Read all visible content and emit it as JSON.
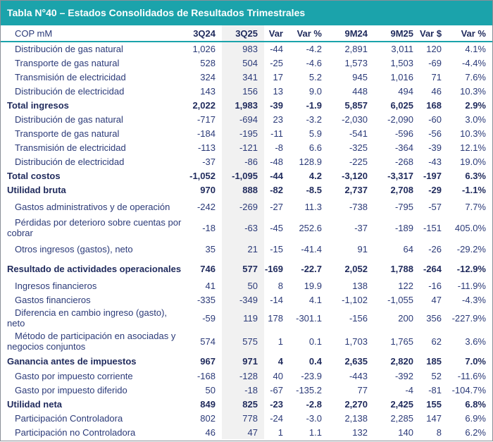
{
  "title": "Tabla N°40 – Estados Consolidados de Resultados Trimestrales",
  "columns": [
    "COP mM",
    "3Q24",
    "3Q25",
    "Var",
    "Var %",
    "9M24",
    "9M25",
    "Var $",
    "Var %"
  ],
  "rows": [
    {
      "label": "Distribución de gas natural",
      "type": "item",
      "values": [
        "1,026",
        "983",
        "-44",
        "-4.2",
        "2,891",
        "3,011",
        "120",
        "4.1%"
      ]
    },
    {
      "label": "Transporte de gas natural",
      "type": "item",
      "values": [
        "528",
        "504",
        "-25",
        "-4.6",
        "1,573",
        "1,503",
        "-69",
        "-4.4%"
      ]
    },
    {
      "label": "Transmisión de electricidad",
      "type": "item",
      "values": [
        "324",
        "341",
        "17",
        "5.2",
        "945",
        "1,016",
        "71",
        "7.6%"
      ]
    },
    {
      "label": "Distribución de electricidad",
      "type": "item",
      "values": [
        "143",
        "156",
        "13",
        "9.0",
        "448",
        "494",
        "46",
        "10.3%"
      ]
    },
    {
      "label": "Total ingresos",
      "type": "bold",
      "values": [
        "2,022",
        "1,983",
        "-39",
        "-1.9",
        "5,857",
        "6,025",
        "168",
        "2.9%"
      ]
    },
    {
      "label": "Distribución de gas natural",
      "type": "item",
      "values": [
        "-717",
        "-694",
        "23",
        "-3.2",
        "-2,030",
        "-2,090",
        "-60",
        "3.0%"
      ]
    },
    {
      "label": "Transporte de gas natural",
      "type": "item",
      "values": [
        "-184",
        "-195",
        "-11",
        "5.9",
        "-541",
        "-596",
        "-56",
        "10.3%"
      ]
    },
    {
      "label": "Transmisión de electricidad",
      "type": "item",
      "values": [
        "-113",
        "-121",
        "-8",
        "6.6",
        "-325",
        "-364",
        "-39",
        "12.1%"
      ]
    },
    {
      "label": "Distribución de electricidad",
      "type": "item",
      "values": [
        "-37",
        "-86",
        "-48",
        "128.9",
        "-225",
        "-268",
        "-43",
        "19.0%"
      ]
    },
    {
      "label": "Total costos",
      "type": "bold",
      "values": [
        "-1,052",
        "-1,095",
        "-44",
        "4.2",
        "-3,120",
        "-3,317",
        "-197",
        "6.3%"
      ]
    },
    {
      "label": "Utilidad bruta",
      "type": "bold",
      "values": [
        "970",
        "888",
        "-82",
        "-8.5",
        "2,737",
        "2,708",
        "-29",
        "-1.1%"
      ]
    },
    {
      "label": "Gastos administrativos y de operación",
      "type": "item",
      "values": [
        "-242",
        "-269",
        "-27",
        "11.3",
        "-738",
        "-795",
        "-57",
        "7.7%"
      ]
    },
    {
      "label": "Pérdidas por deterioro sobre cuentas por cobrar",
      "type": "wrap",
      "values": [
        "-18",
        "-63",
        "-45",
        "252.6",
        "-37",
        "-189",
        "-151",
        "405.0%"
      ]
    },
    {
      "label": "Otros ingresos (gastos), neto",
      "type": "item",
      "values": [
        "35",
        "21",
        "-15",
        "-41.4",
        "91",
        "64",
        "-26",
        "-29.2%"
      ]
    },
    {
      "label": "Resultado de actividades operacionales",
      "type": "bold",
      "values": [
        "746",
        "577",
        "-169",
        "-22.7",
        "2,052",
        "1,788",
        "-264",
        "-12.9%"
      ]
    },
    {
      "label": "Ingresos financieros",
      "type": "item",
      "values": [
        "41",
        "50",
        "8",
        "19.9",
        "138",
        "122",
        "-16",
        "-11.9%"
      ]
    },
    {
      "label": "Gastos financieros",
      "type": "item",
      "values": [
        "-335",
        "-349",
        "-14",
        "4.1",
        "-1,102",
        "-1,055",
        "47",
        "-4.3%"
      ]
    },
    {
      "label": "Diferencia en cambio ingreso (gasto), neto",
      "type": "wrap",
      "values": [
        "-59",
        "119",
        "178",
        "-301.1",
        "-156",
        "200",
        "356",
        "-227.9%"
      ]
    },
    {
      "label": "Método de participación en asociadas y negocios conjuntos",
      "type": "wrap",
      "values": [
        "574",
        "575",
        "1",
        "0.1",
        "1,703",
        "1,765",
        "62",
        "3.6%"
      ]
    },
    {
      "label": "Ganancia antes de impuestos",
      "type": "bold",
      "values": [
        "967",
        "971",
        "4",
        "0.4",
        "2,635",
        "2,820",
        "185",
        "7.0%"
      ]
    },
    {
      "label": "Gasto por impuesto corriente",
      "type": "item",
      "values": [
        "-168",
        "-128",
        "40",
        "-23.9",
        "-443",
        "-392",
        "52",
        "-11.6%"
      ]
    },
    {
      "label": "Gasto por impuesto diferido",
      "type": "item",
      "values": [
        "50",
        "-18",
        "-67",
        "-135.2",
        "77",
        "-4",
        "-81",
        "-104.7%"
      ]
    },
    {
      "label": "Utilidad neta",
      "type": "bold",
      "values": [
        "849",
        "825",
        "-23",
        "-2.8",
        "2,270",
        "2,425",
        "155",
        "6.8%"
      ]
    },
    {
      "label": "Participación Controladora",
      "type": "item",
      "values": [
        "802",
        "778",
        "-24",
        "-3.0",
        "2,138",
        "2,285",
        "147",
        "6.9%"
      ]
    },
    {
      "label": "Participación no Controladora",
      "type": "item",
      "values": [
        "46",
        "47",
        "1",
        "1.1",
        "132",
        "140",
        "8",
        "6.2%"
      ]
    }
  ]
}
